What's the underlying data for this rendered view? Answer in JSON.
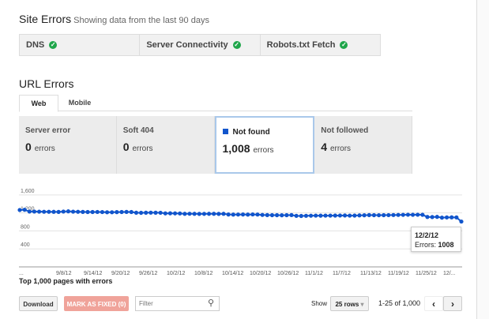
{
  "site_errors": {
    "title": "Site Errors",
    "subtitle": "Showing data from the last 90 days",
    "items": [
      {
        "label": "DNS"
      },
      {
        "label": "Server Connectivity"
      },
      {
        "label": "Robots.txt Fetch"
      }
    ]
  },
  "url_errors": {
    "title": "URL Errors",
    "tabs": [
      "Web",
      "Mobile"
    ],
    "cards": [
      {
        "title": "Server error",
        "count": "0",
        "unit": "errors"
      },
      {
        "title": "Soft 404",
        "count": "0",
        "unit": "errors"
      },
      {
        "title": "Not found",
        "count": "1,008",
        "unit": "errors",
        "selected": true
      },
      {
        "title": "Not followed",
        "count": "4",
        "unit": "errors"
      }
    ]
  },
  "chart_data": {
    "type": "line",
    "start_date": "9/2/12",
    "end_date": "12/2/12",
    "ylim": [
      0,
      1600
    ],
    "yticks": [
      "1,600",
      "1,200",
      "800",
      "400"
    ],
    "xticks": [
      "...",
      "9/8/12",
      "9/14/12",
      "9/20/12",
      "9/26/12",
      "10/2/12",
      "10/8/12",
      "10/14/12",
      "10/20/12",
      "10/26/12",
      "11/1/12",
      "11/7/12",
      "11/13/12",
      "11/19/12",
      "11/25/12",
      "12/..."
    ],
    "color": "#1155cc",
    "values": [
      1265,
      1270,
      1230,
      1230,
      1228,
      1226,
      1225,
      1224,
      1222,
      1230,
      1235,
      1228,
      1225,
      1222,
      1220,
      1220,
      1221,
      1219,
      1215,
      1215,
      1218,
      1220,
      1222,
      1220,
      1205,
      1203,
      1205,
      1206,
      1205,
      1204,
      1190,
      1192,
      1190,
      1188,
      1180,
      1182,
      1180,
      1178,
      1179,
      1180,
      1181,
      1178,
      1180,
      1165,
      1163,
      1164,
      1165,
      1163,
      1166,
      1164,
      1155,
      1152,
      1150,
      1150,
      1148,
      1150,
      1152,
      1135,
      1132,
      1136,
      1138,
      1140,
      1139,
      1140,
      1140,
      1141,
      1142,
      1143,
      1140,
      1141,
      1145,
      1148,
      1152,
      1150,
      1149,
      1150,
      1151,
      1153,
      1155,
      1157,
      1160,
      1158,
      1160,
      1158,
      1110,
      1108,
      1112,
      1095,
      1100,
      1102,
      1100,
      1008
    ],
    "tooltip": {
      "date": "12/2/12",
      "label": "Errors:",
      "value": "1008"
    }
  },
  "table": {
    "title": "Top 1,000 pages with errors",
    "download": "Download",
    "mark_fixed": "MARK AS FIXED (0)",
    "filter_placeholder": "Filter",
    "show": "Show",
    "rows": "25 rows",
    "range": "1-25 of 1,000"
  }
}
